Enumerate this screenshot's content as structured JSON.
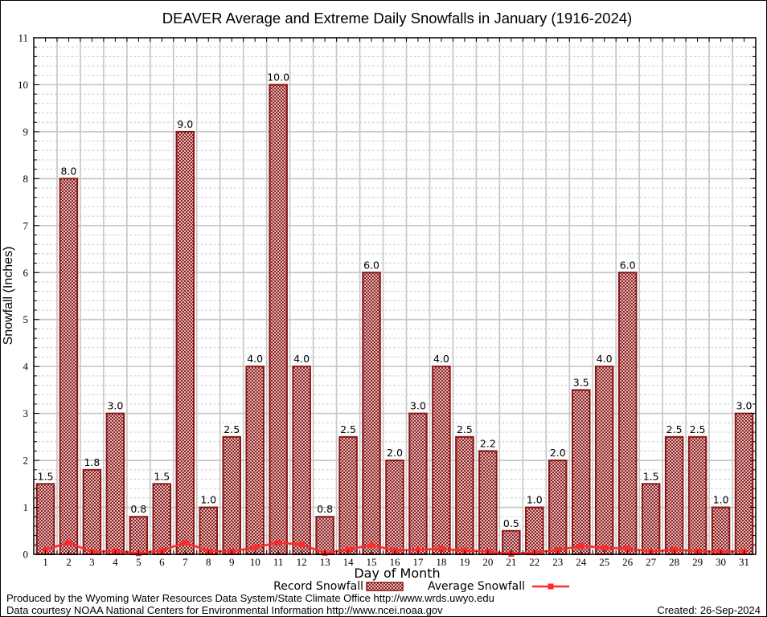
{
  "title": "DEAVER Average and Extreme Daily Snowfalls in January (1916-2024)",
  "chart_data": {
    "type": "bar",
    "title": "DEAVER Average and Extreme Daily Snowfalls in January (1916-2024)",
    "xlabel": "Day of Month",
    "ylabel": "Snowfall (Inches)",
    "ylim": [
      0,
      11
    ],
    "yticks": [
      0,
      1,
      2,
      3,
      4,
      5,
      6,
      7,
      8,
      9,
      10,
      11
    ],
    "y_minor_step": 0.2,
    "grid": true,
    "legend_position": "bottom",
    "categories": [
      1,
      2,
      3,
      4,
      5,
      6,
      7,
      8,
      9,
      10,
      11,
      12,
      13,
      14,
      15,
      16,
      17,
      18,
      19,
      20,
      21,
      22,
      23,
      24,
      25,
      26,
      27,
      28,
      29,
      30,
      31
    ],
    "series": [
      {
        "name": "Record Snowfall",
        "type": "bar",
        "values": [
          1.5,
          8.0,
          1.8,
          3.0,
          0.8,
          1.5,
          9.0,
          1.0,
          2.5,
          4.0,
          10.0,
          4.0,
          0.8,
          2.5,
          6.0,
          2.0,
          3.0,
          4.0,
          2.5,
          2.2,
          0.5,
          1.0,
          2.0,
          3.5,
          4.0,
          6.0,
          1.5,
          2.5,
          2.5,
          1.0,
          3.0
        ],
        "labels": [
          "1.5",
          "8.0",
          "1.8",
          "3.0",
          "0.8",
          "1.5",
          "9.0",
          "1.0",
          "2.5",
          "4.0",
          "10.0",
          "4.0",
          "0.8",
          "2.5",
          "6.0",
          "2.0",
          "3.0",
          "4.0",
          "2.5",
          "2.2",
          "0.5",
          "1.0",
          "2.0",
          "3.5",
          "4.0",
          "6.0",
          "1.5",
          "2.5",
          "2.5",
          "1.0",
          "3.0"
        ]
      },
      {
        "name": "Average Snowfall",
        "type": "line",
        "values": [
          0.1,
          0.25,
          0.05,
          0.07,
          0.02,
          0.08,
          0.25,
          0.07,
          0.06,
          0.15,
          0.25,
          0.21,
          0.03,
          0.1,
          0.2,
          0.08,
          0.1,
          0.12,
          0.08,
          0.06,
          0.01,
          0.04,
          0.09,
          0.18,
          0.14,
          0.12,
          0.06,
          0.1,
          0.07,
          0.05,
          0.07
        ]
      }
    ]
  },
  "colors": {
    "bar": "#8b1616",
    "line": "#ff2b2b",
    "grid": "#c8c8c8",
    "axis": "#000000",
    "background": "#ffffff"
  },
  "footer": {
    "line1": "Produced by the Wyoming Water Resources Data System/State Climate Office http://www.wrds.uwyo.edu",
    "line2": "Data courtesy NOAA National Centers for Environmental Information http://www.ncei.noaa.gov",
    "created": "Created: 26-Sep-2024"
  }
}
